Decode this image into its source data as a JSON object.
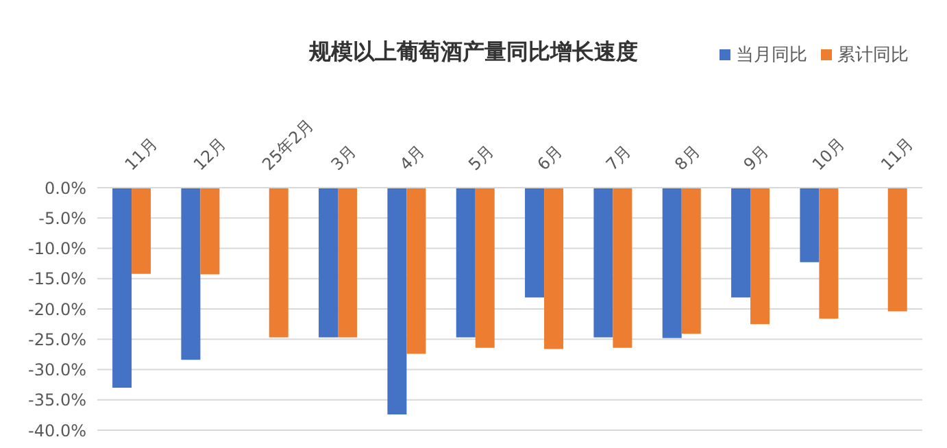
{
  "chart_data": {
    "type": "bar",
    "title": "规模以上葡萄酒产量同比增长速度",
    "categories": [
      "11月",
      "12月",
      "25年2月",
      "3月",
      "4月",
      "5月",
      "6月",
      "7月",
      "8月",
      "9月",
      "10月",
      "11月"
    ],
    "series": [
      {
        "name": "当月同比",
        "color": "#4472c4",
        "values": [
          -33.0,
          -28.4,
          null,
          -24.7,
          -37.4,
          -24.7,
          -18.1,
          -24.7,
          -24.8,
          -18.1,
          -12.3,
          null
        ]
      },
      {
        "name": "累计同比",
        "color": "#ed7d31",
        "values": [
          -14.2,
          -14.3,
          -24.7,
          -24.7,
          -27.4,
          -26.4,
          -26.6,
          -26.4,
          -24.1,
          -22.5,
          -21.6,
          -20.4
        ]
      }
    ],
    "ylim": [
      -40,
      0
    ],
    "yticks": [
      {
        "value": 0,
        "label": "0.0%"
      },
      {
        "value": -5,
        "label": "-5.0%"
      },
      {
        "value": -10,
        "label": "-10.0%"
      },
      {
        "value": -15,
        "label": "-15.0%"
      },
      {
        "value": -20,
        "label": "-20.0%"
      },
      {
        "value": -25,
        "label": "-25.0%"
      },
      {
        "value": -30,
        "label": "-30.0%"
      },
      {
        "value": -35,
        "label": "-35.0%"
      },
      {
        "value": -40,
        "label": "-40.0%"
      }
    ],
    "grid": "y",
    "legend": "top right"
  }
}
